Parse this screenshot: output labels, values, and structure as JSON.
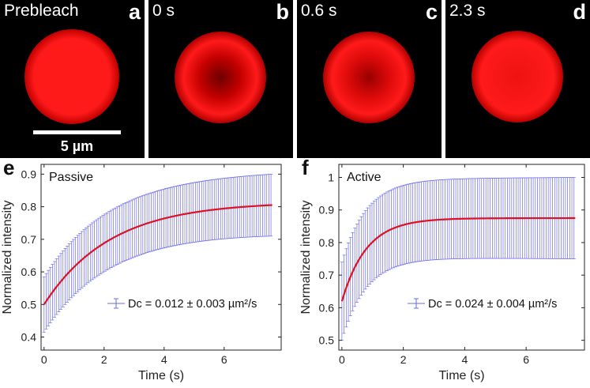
{
  "panels": [
    {
      "letter": "a",
      "time": "Prebleach",
      "dark": 0.0
    },
    {
      "letter": "b",
      "time": "0 s",
      "dark": 0.55
    },
    {
      "letter": "c",
      "time": "0.6 s",
      "dark": 0.35
    },
    {
      "letter": "d",
      "time": "2.3 s",
      "dark": 0.08
    }
  ],
  "scale_bar_label": "5 µm",
  "colors": {
    "droplet": "#ff1a1a",
    "errorbar": "#6a6ae8",
    "fit": "#e0101c"
  },
  "chart_data": [
    {
      "type": "line",
      "panel_letter": "e",
      "title": "Passive",
      "xlabel": "Time (s)",
      "ylabel": "Normalized intensity",
      "xlim": [
        -0.1,
        7.9
      ],
      "ylim": [
        0.36,
        0.93
      ],
      "xticks": [
        0,
        2,
        4,
        6
      ],
      "yticks": [
        0.4,
        0.5,
        0.6,
        0.7,
        0.8,
        0.9
      ],
      "ytick_labels": [
        "0.4",
        "0.5",
        "0.6",
        "0.7",
        "0.8",
        "0.9"
      ],
      "legend": "Dc = 0.012 ± 0.003 µm²/s",
      "legend_position": "bottom-right",
      "model": {
        "y0": 0.5,
        "yinf": 0.815,
        "tau": 2.2,
        "t_end": 7.6,
        "dt": 0.07
      },
      "errorbar": {
        "sd_start": 0.085,
        "sd_end": 0.095
      },
      "series": [
        {
          "name": "mean ± SD (error bars)",
          "style": "errorbar"
        },
        {
          "name": "fit",
          "style": "line"
        }
      ]
    },
    {
      "type": "line",
      "panel_letter": "f",
      "title": "Active",
      "xlabel": "Time (s)",
      "ylabel": "Normalized intensity",
      "xlim": [
        -0.1,
        7.9
      ],
      "ylim": [
        0.47,
        1.04
      ],
      "xticks": [
        0,
        2,
        4,
        6
      ],
      "yticks": [
        0.5,
        0.6,
        0.7,
        0.8,
        0.9,
        1.0
      ],
      "ytick_labels": [
        "0.5",
        "0.6",
        "0.7",
        "0.8",
        "0.9",
        "1"
      ],
      "legend": "Dc = 0.024 ± 0.004 µm²/s",
      "legend_position": "bottom-right",
      "model": {
        "y0": 0.62,
        "yinf": 0.875,
        "tau": 0.8,
        "t_end": 7.6,
        "dt": 0.07
      },
      "errorbar": {
        "sd_start": 0.12,
        "sd_end": 0.125
      },
      "series": [
        {
          "name": "mean ± SD (error bars)",
          "style": "errorbar"
        },
        {
          "name": "fit",
          "style": "line"
        }
      ]
    }
  ]
}
